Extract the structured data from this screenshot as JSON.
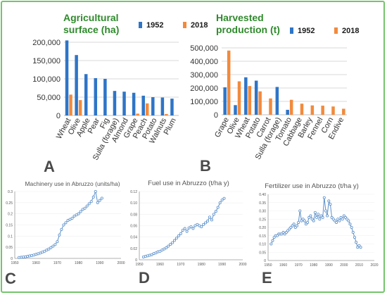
{
  "colors": {
    "c1952": "#2e75c7",
    "c2018": "#f28a3c",
    "line": "#5b8fc9",
    "grid": "#d9d9d9",
    "frame": "#74c56b",
    "title_green": "#2f8a2c"
  },
  "chart_data": [
    {
      "panel": "A",
      "type": "bar",
      "title_lines": [
        "Agricultural",
        "surface (ha)"
      ],
      "categories": [
        "Wheat",
        "Olive",
        "Apple",
        "Pear",
        "Fig",
        "Sulla (forage)",
        "Almond",
        "Grape",
        "Peach",
        "Potato",
        "Walnuts",
        "Plum"
      ],
      "series": [
        {
          "name": "1952",
          "values": [
            205000,
            165000,
            113000,
            102000,
            100000,
            67000,
            65000,
            62000,
            54000,
            50000,
            49000,
            46000
          ]
        },
        {
          "name": "2018",
          "values": [
            57000,
            42000,
            0,
            0,
            0,
            0,
            0,
            5000,
            33000,
            0,
            4000,
            0
          ]
        }
      ],
      "ylim": [
        0,
        200000
      ],
      "yticks": [
        "0",
        "50,000",
        "100,000",
        "150,000",
        "200,000"
      ],
      "ytick_values": [
        0,
        50000,
        100000,
        150000,
        200000
      ],
      "grid": true,
      "legend": "top-right"
    },
    {
      "panel": "B",
      "type": "bar",
      "title_lines": [
        "Harvested",
        "production (t)"
      ],
      "categories": [
        "Grape",
        "Olive",
        "Wheat",
        "Potato",
        "Carrot",
        "Sulla (forage)",
        "Tomato",
        "Cabbage",
        "Barley",
        "Fennel",
        "Corn",
        "Endive"
      ],
      "series": [
        {
          "name": "1952",
          "values": [
            205000,
            72000,
            280000,
            255000,
            0,
            208000,
            37000,
            0,
            0,
            0,
            0,
            0
          ]
        },
        {
          "name": "2018",
          "values": [
            480000,
            250000,
            215000,
            175000,
            122000,
            0,
            112000,
            83000,
            70000,
            68000,
            62000,
            45000
          ]
        }
      ],
      "ylim": [
        0,
        500000
      ],
      "yticks": [
        "0",
        "100,000",
        "200,000",
        "300,000",
        "400,000",
        "500,000"
      ],
      "ytick_values": [
        0,
        100000,
        200000,
        300000,
        400000,
        500000
      ],
      "grid": true,
      "legend": "top-right"
    },
    {
      "panel": "C",
      "type": "line",
      "title": "Machinery use in Abruzzo (units/ha)",
      "xlim": [
        1950,
        2000
      ],
      "xticks": [
        "1950",
        "1960",
        "1970",
        "1980",
        "1990",
        "2000"
      ],
      "xtick_values": [
        1950,
        1960,
        1970,
        1980,
        1990,
        2000
      ],
      "ylim": [
        0,
        0.3
      ],
      "yticks": [
        "0",
        "0.05",
        "0.1",
        "0.15",
        "0.2",
        "0.25",
        "0.3"
      ],
      "ytick_values": [
        0,
        0.05,
        0.1,
        0.15,
        0.2,
        0.25,
        0.3
      ],
      "x": [
        1952,
        1953,
        1954,
        1955,
        1956,
        1957,
        1958,
        1959,
        1960,
        1961,
        1962,
        1963,
        1964,
        1965,
        1966,
        1967,
        1968,
        1969,
        1970,
        1971,
        1972,
        1973,
        1974,
        1975,
        1976,
        1977,
        1978,
        1979,
        1980,
        1981,
        1982,
        1983,
        1984,
        1985,
        1986,
        1987,
        1988,
        1989,
        1990,
        1991
      ],
      "y": [
        0.004,
        0.005,
        0.006,
        0.007,
        0.009,
        0.011,
        0.013,
        0.015,
        0.018,
        0.021,
        0.024,
        0.028,
        0.032,
        0.037,
        0.042,
        0.048,
        0.055,
        0.062,
        0.075,
        0.105,
        0.13,
        0.15,
        0.16,
        0.17,
        0.175,
        0.18,
        0.19,
        0.195,
        0.2,
        0.21,
        0.22,
        0.225,
        0.235,
        0.245,
        0.255,
        0.275,
        0.3,
        0.25,
        0.26,
        0.27
      ]
    },
    {
      "panel": "D",
      "type": "line",
      "title": "Fuel use in Abruzzo (t/ha y)",
      "xlim": [
        1950,
        2000
      ],
      "xticks": [
        "1950",
        "1960",
        "1970",
        "1980",
        "1990",
        "2000"
      ],
      "xtick_values": [
        1950,
        1960,
        1970,
        1980,
        1990,
        2000
      ],
      "ylim": [
        0,
        0.12
      ],
      "yticks": [
        "0",
        "0.02",
        "0.04",
        "0.06",
        "0.08",
        "0.10",
        "0.12"
      ],
      "ytick_values": [
        0,
        0.02,
        0.04,
        0.06,
        0.08,
        0.1,
        0.12
      ],
      "x": [
        1952,
        1953,
        1954,
        1955,
        1956,
        1957,
        1958,
        1959,
        1960,
        1961,
        1962,
        1963,
        1964,
        1965,
        1966,
        1967,
        1968,
        1969,
        1970,
        1971,
        1972,
        1973,
        1974,
        1975,
        1976,
        1977,
        1978,
        1979,
        1980,
        1981,
        1982,
        1983,
        1984,
        1985,
        1986,
        1987,
        1988,
        1989,
        1990,
        1991
      ],
      "y": [
        0.005,
        0.006,
        0.007,
        0.008,
        0.009,
        0.011,
        0.012,
        0.014,
        0.015,
        0.017,
        0.019,
        0.021,
        0.024,
        0.027,
        0.03,
        0.034,
        0.038,
        0.042,
        0.046,
        0.052,
        0.055,
        0.05,
        0.056,
        0.058,
        0.055,
        0.06,
        0.062,
        0.06,
        0.058,
        0.062,
        0.065,
        0.068,
        0.075,
        0.07,
        0.08,
        0.085,
        0.092,
        0.1,
        0.105,
        0.108
      ]
    },
    {
      "panel": "E",
      "type": "line",
      "title": "Fertilizer use in Abruzzo (t/ha y)",
      "xlim": [
        1950,
        2020
      ],
      "xticks": [
        "1950",
        "1960",
        "1970",
        "1980",
        "1990",
        "2000",
        "2010",
        "2020"
      ],
      "xtick_values": [
        1950,
        1960,
        1970,
        1980,
        1990,
        2000,
        2010,
        2020
      ],
      "ylim": [
        0,
        0.4
      ],
      "yticks": [
        "0",
        "0.05",
        "0.10",
        "0.15",
        "0.20",
        "0.25",
        "0.30",
        "0.35",
        "0.40"
      ],
      "ytick_values": [
        0,
        0.05,
        0.1,
        0.15,
        0.2,
        0.25,
        0.3,
        0.35,
        0.4
      ],
      "x": [
        1952,
        1953,
        1954,
        1955,
        1956,
        1957,
        1958,
        1959,
        1960,
        1961,
        1962,
        1963,
        1964,
        1965,
        1966,
        1967,
        1968,
        1969,
        1970,
        1971,
        1972,
        1973,
        1974,
        1975,
        1976,
        1977,
        1978,
        1979,
        1980,
        1981,
        1982,
        1983,
        1984,
        1985,
        1986,
        1987,
        1988,
        1989,
        1990,
        1991,
        1992,
        1993,
        1994,
        1995,
        1996,
        1997,
        1998,
        1999,
        2000,
        2001,
        2002,
        2003,
        2004,
        2005,
        2006,
        2007,
        2008,
        2009,
        2010,
        2011
      ],
      "y": [
        0.1,
        0.12,
        0.14,
        0.15,
        0.15,
        0.16,
        0.16,
        0.16,
        0.17,
        0.16,
        0.17,
        0.18,
        0.19,
        0.2,
        0.21,
        0.22,
        0.2,
        0.21,
        0.23,
        0.3,
        0.24,
        0.25,
        0.24,
        0.22,
        0.23,
        0.26,
        0.27,
        0.25,
        0.24,
        0.29,
        0.26,
        0.28,
        0.25,
        0.27,
        0.26,
        0.38,
        0.3,
        0.27,
        0.36,
        0.34,
        0.26,
        0.25,
        0.24,
        0.23,
        0.25,
        0.24,
        0.26,
        0.25,
        0.27,
        0.26,
        0.25,
        0.24,
        0.22,
        0.2,
        0.17,
        0.14,
        0.11,
        0.08,
        0.09,
        0.08
      ]
    }
  ]
}
